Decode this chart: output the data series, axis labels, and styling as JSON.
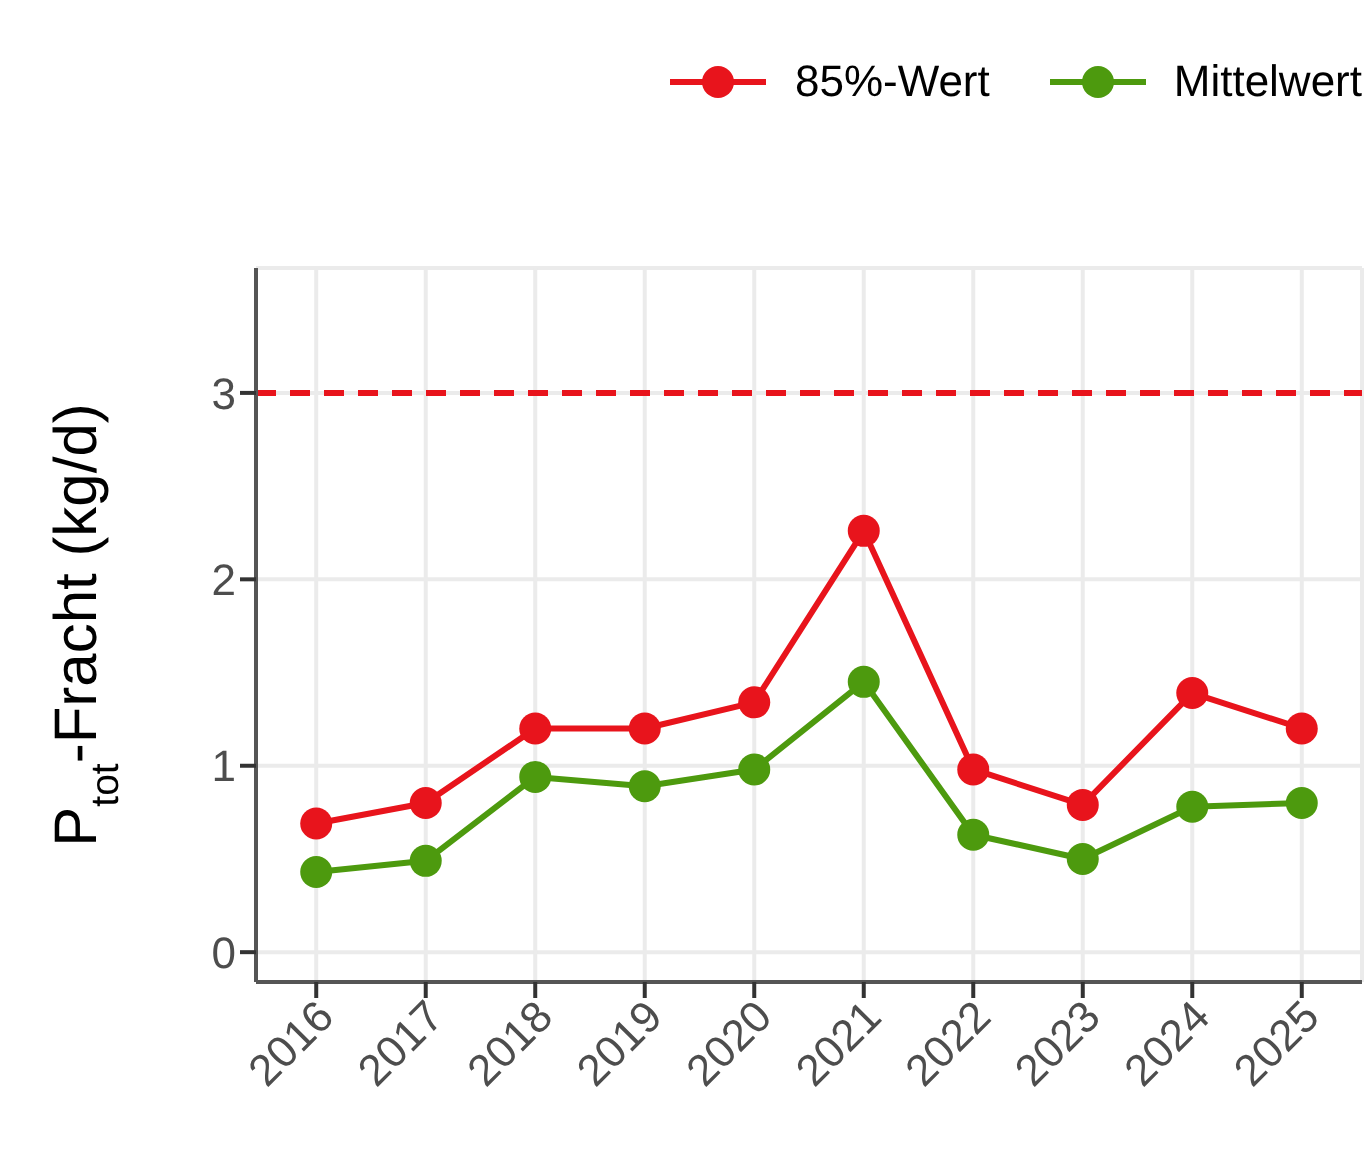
{
  "chart_data": {
    "type": "line",
    "ylabel": "P$_{tot}$-Fracht (kg/d)",
    "categories": [
      "2016",
      "2017",
      "2018",
      "2019",
      "2020",
      "2021",
      "2022",
      "2023",
      "2024",
      "2025"
    ],
    "series": [
      {
        "name": "85%-Wert",
        "color": "#e8141c",
        "values": [
          0.69,
          0.8,
          1.2,
          1.2,
          1.34,
          2.26,
          0.98,
          0.79,
          1.39,
          1.2
        ]
      },
      {
        "name": "Mittelwert",
        "color": "#4d9a0e",
        "values": [
          0.43,
          0.49,
          0.94,
          0.89,
          0.98,
          1.45,
          0.63,
          0.5,
          0.78,
          0.8
        ]
      }
    ],
    "ylim": [
      -0.16,
      3.67
    ],
    "yticks": [
      0,
      1,
      2,
      3
    ],
    "ref_lines": [
      {
        "axis": "y",
        "value": 3,
        "color": "#e8141c",
        "line_style": "dashed"
      }
    ],
    "grid": true,
    "legend": "top right",
    "marker": "circle",
    "line_style": "solid"
  }
}
